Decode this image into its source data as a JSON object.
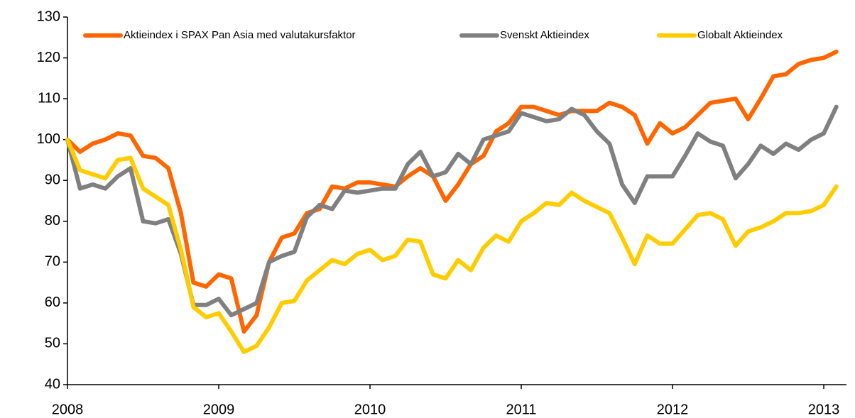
{
  "chart_data": {
    "type": "line",
    "x": [
      2008,
      2008.083,
      2008.167,
      2008.25,
      2008.333,
      2008.417,
      2008.5,
      2008.583,
      2008.667,
      2008.75,
      2008.833,
      2008.917,
      2009,
      2009.083,
      2009.167,
      2009.25,
      2009.333,
      2009.417,
      2009.5,
      2009.583,
      2009.667,
      2009.75,
      2009.833,
      2009.917,
      2010,
      2010.083,
      2010.167,
      2010.25,
      2010.333,
      2010.417,
      2010.5,
      2010.583,
      2010.667,
      2010.75,
      2010.833,
      2010.917,
      2011,
      2011.083,
      2011.167,
      2011.25,
      2011.333,
      2011.417,
      2011.5,
      2011.583,
      2011.667,
      2011.75,
      2011.833,
      2011.917,
      2012,
      2012.083,
      2012.167,
      2012.25,
      2012.333,
      2012.417,
      2012.5,
      2012.583,
      2012.667,
      2012.75,
      2012.833,
      2012.917,
      2013,
      2013.083
    ],
    "series": [
      {
        "name": "Aktieindex i SPAX Pan Asia med valutakursfaktor",
        "color": "#ff6600",
        "values": [
          100,
          97,
          99,
          100,
          101.5,
          101,
          96,
          95.5,
          93,
          82,
          65,
          64,
          67,
          66,
          53,
          57,
          70,
          76,
          77,
          82,
          83,
          88.5,
          88,
          89.5,
          89.5,
          89,
          88.5,
          91,
          93,
          91,
          85,
          89,
          94,
          96,
          102,
          104,
          108,
          108,
          107,
          106,
          107,
          107,
          107,
          109,
          108,
          106,
          99,
          104,
          101.5,
          103,
          106,
          109,
          109.5,
          110,
          105,
          110,
          115.5,
          116,
          118.5,
          119.5,
          120,
          121.5
        ]
      },
      {
        "name": "Svenskt Aktieindex",
        "color": "#808080",
        "values": [
          100,
          88,
          89,
          88,
          91,
          93,
          80,
          79.5,
          80.5,
          72,
          59.5,
          59.5,
          61,
          57,
          58.5,
          60,
          70,
          71.5,
          72.5,
          81,
          84,
          83,
          87.5,
          87,
          87.5,
          88,
          88,
          94,
          97,
          91,
          92,
          96.5,
          94,
          100,
          101,
          102,
          106.5,
          105.5,
          104.5,
          105,
          107.5,
          106,
          102,
          99,
          89,
          84.5,
          91,
          91,
          91,
          96,
          101.5,
          99.5,
          98.5,
          90.5,
          94,
          98.5,
          96.5,
          99,
          97.5,
          100,
          101.5,
          108
        ]
      },
      {
        "name": "Globalt Aktieindex",
        "color": "#ffcc00",
        "values": [
          100,
          92.5,
          91.5,
          90.5,
          95,
          95.5,
          88,
          86,
          84,
          73,
          59,
          56.5,
          57.5,
          53,
          48,
          49.5,
          54,
          60,
          60.5,
          65.5,
          68,
          70.5,
          69.5,
          72,
          73,
          70.5,
          71.5,
          75.5,
          75,
          67,
          66,
          70.5,
          68,
          73.5,
          76.5,
          75,
          80,
          82,
          84.5,
          84,
          87,
          85,
          83.5,
          82,
          76,
          69.5,
          76.5,
          74.5,
          74.5,
          78,
          81.5,
          82,
          80.5,
          74,
          77.5,
          78.5,
          80,
          82,
          82,
          82.5,
          84,
          88.5
        ]
      }
    ],
    "xlim": [
      2008,
      2013.15
    ],
    "xticks": [
      2008,
      2009,
      2010,
      2011,
      2012,
      2013
    ],
    "ylim": [
      40,
      130
    ],
    "yticks": [
      40,
      50,
      60,
      70,
      80,
      90,
      100,
      110,
      120,
      130
    ],
    "legend": "top"
  }
}
